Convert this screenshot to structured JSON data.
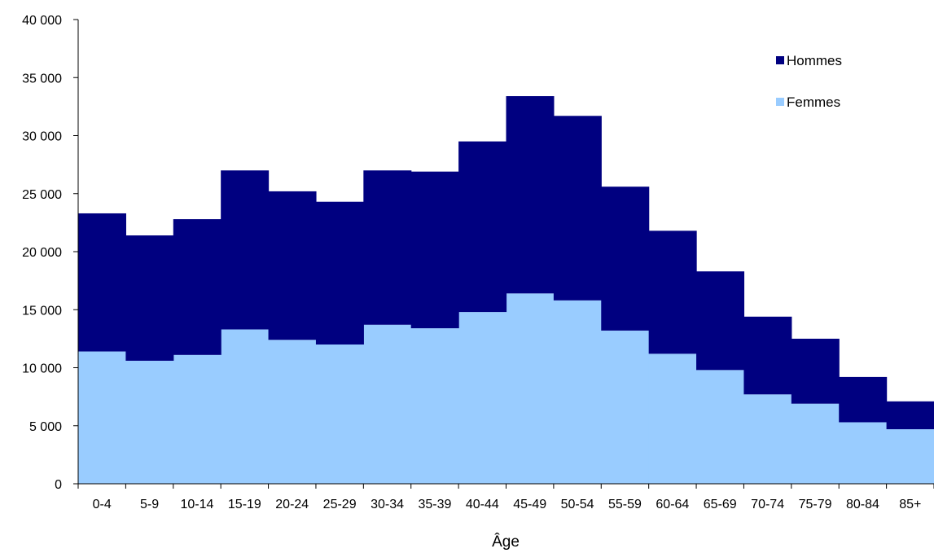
{
  "chart_data": {
    "type": "area",
    "stacked": true,
    "step": true,
    "categories": [
      "0-4",
      "5-9",
      "10-14",
      "15-19",
      "20-24",
      "25-29",
      "30-34",
      "35-39",
      "40-44",
      "45-49",
      "50-54",
      "55-59",
      "60-64",
      "65-69",
      "70-74",
      "75-79",
      "80-84",
      "85+"
    ],
    "series": [
      {
        "name": "Femmes",
        "color": "#99ccff",
        "values": [
          11400,
          10600,
          11100,
          13300,
          12400,
          12000,
          13700,
          13400,
          14800,
          16400,
          15800,
          13200,
          11200,
          9800,
          7700,
          6900,
          5300,
          4700
        ]
      },
      {
        "name": "Hommes",
        "color": "#000080",
        "values": [
          11900,
          10800,
          11700,
          13700,
          12800,
          12300,
          13300,
          13500,
          14700,
          17000,
          15900,
          12400,
          10600,
          8500,
          6700,
          5600,
          3900,
          2400
        ]
      }
    ],
    "xlabel": "Âge",
    "ylabel": "",
    "ylim": [
      0,
      40000
    ],
    "yticks": [
      0,
      5000,
      10000,
      15000,
      20000,
      25000,
      30000,
      35000,
      40000
    ],
    "ytick_labels": [
      "0",
      "5 000",
      "10 000",
      "15 000",
      "20 000",
      "25 000",
      "30 000",
      "35 000",
      "40 000"
    ],
    "legend": {
      "position": "top-right",
      "entries": [
        "Hommes",
        "Femmes"
      ]
    },
    "grid": false
  }
}
